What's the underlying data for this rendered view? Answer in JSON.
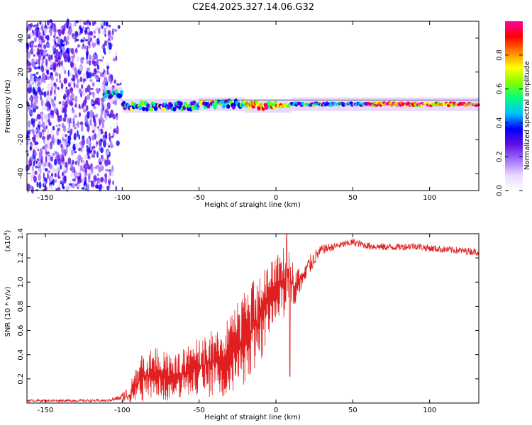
{
  "title": "C2E4.2025.327.14.06.G32",
  "chart_data": [
    {
      "type": "heatmap",
      "name": "spectrogram",
      "xlabel": "Height of straight line (km)",
      "ylabel": "Frequency (Hz)",
      "xlim": [
        -162,
        132
      ],
      "ylim": [
        -50,
        50
      ],
      "xticks": [
        -150,
        -100,
        -50,
        0,
        50,
        100
      ],
      "yticks": [
        -40,
        -20,
        0,
        20,
        40
      ],
      "colorbar": {
        "label": "Normalized spectral amplitude",
        "range": [
          0,
          1
        ],
        "ticks": [
          0.0,
          0.2,
          0.4,
          0.6,
          0.8
        ],
        "tick_labels": [
          "0.0",
          "0.2",
          "0.4",
          "0.6",
          "0.8"
        ],
        "colors": [
          "#ffffff",
          "#e8d8ff",
          "#a070ff",
          "#6010e0",
          "#0000ff",
          "#00c0ff",
          "#00ff80",
          "#80ff00",
          "#ffff00",
          "#ff8000",
          "#ff0000",
          "#ff00a0"
        ]
      },
      "noise_region_km": [
        -162,
        -100
      ],
      "signal_track": {
        "frequency_hz": 1,
        "segments": [
          {
            "x_start": -112,
            "x_end": -100,
            "freq": 7,
            "amplitude": 0.3
          },
          {
            "x_start": -100,
            "x_end": -50,
            "freq": 0,
            "amplitude": 0.45
          },
          {
            "x_start": -50,
            "x_end": -20,
            "freq": 1,
            "amplitude": 0.5
          },
          {
            "x_start": -20,
            "x_end": 10,
            "freq": 0,
            "amplitude": 0.75
          },
          {
            "x_start": 10,
            "x_end": 60,
            "freq": 1,
            "amplitude": 0.4
          },
          {
            "x_start": 60,
            "x_end": 132,
            "freq": 1,
            "amplitude": 0.85
          }
        ]
      }
    },
    {
      "type": "line",
      "name": "snr",
      "xlabel": "Height of straight line (km)",
      "ylabel": "SNR (10 * v/v)",
      "yscale_label": "(x10",
      "yscale_exp": "4",
      "yscale_close": ")",
      "xlim": [
        -162,
        132
      ],
      "ylim": [
        0,
        1.4
      ],
      "xticks": [
        -150,
        -100,
        -50,
        0,
        50,
        100
      ],
      "yticks": [
        0.2,
        0.4,
        0.6,
        0.8,
        1.0,
        1.2,
        1.4
      ],
      "color": "#e02020",
      "envelope": {
        "x": [
          -162,
          -110,
          -102,
          -95,
          -88,
          -80,
          -70,
          -60,
          -50,
          -40,
          -30,
          -20,
          -12,
          -5,
          0,
          5,
          8,
          12,
          20,
          25,
          30,
          40,
          50,
          60,
          70,
          80,
          90,
          100,
          110,
          120,
          132
        ],
        "mean": [
          0.02,
          0.02,
          0.04,
          0.08,
          0.2,
          0.25,
          0.22,
          0.25,
          0.3,
          0.35,
          0.4,
          0.55,
          0.65,
          0.85,
          0.95,
          1.0,
          1.05,
          0.95,
          1.1,
          1.2,
          1.27,
          1.3,
          1.33,
          1.3,
          1.29,
          1.29,
          1.3,
          1.28,
          1.27,
          1.26,
          1.25
        ],
        "spread": [
          0.01,
          0.01,
          0.02,
          0.08,
          0.2,
          0.22,
          0.2,
          0.2,
          0.25,
          0.3,
          0.35,
          0.4,
          0.4,
          0.3,
          0.25,
          0.3,
          0.3,
          0.15,
          0.1,
          0.06,
          0.04,
          0.03,
          0.03,
          0.03,
          0.03,
          0.03,
          0.03,
          0.03,
          0.03,
          0.03,
          0.03
        ]
      },
      "features": [
        {
          "x": 7,
          "y": 1.4,
          "label": "peak"
        },
        {
          "x": 9,
          "y": 0.22,
          "label": "dip"
        }
      ]
    }
  ]
}
